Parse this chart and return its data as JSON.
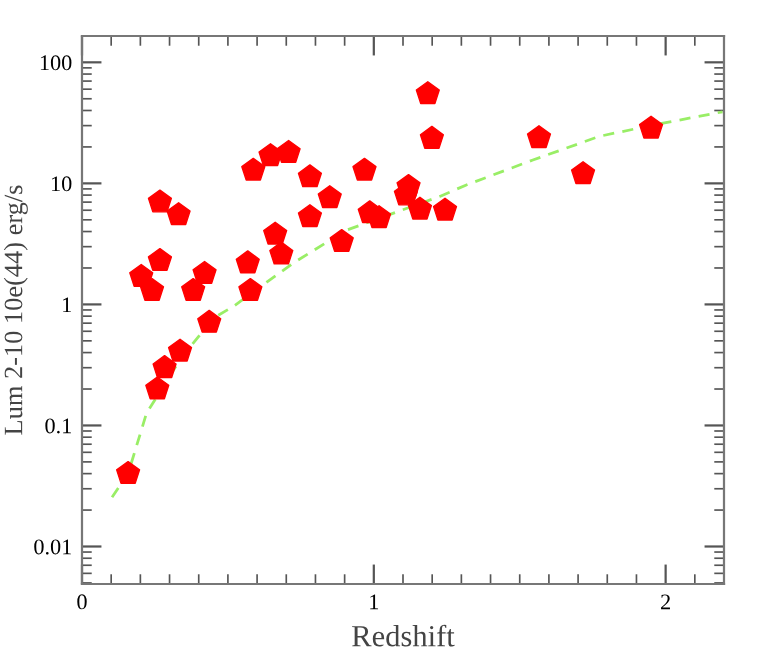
{
  "chart_data": {
    "type": "scatter",
    "xlabel": "Redshift",
    "ylabel": "Lum 2-10 10e(44) erg/s",
    "log": "y",
    "xlim": [
      0,
      2.2
    ],
    "ylim": [
      0.0049,
      165
    ],
    "xticks": [
      0,
      1,
      2
    ],
    "yticks": [
      0.01,
      0.1,
      1,
      10,
      100
    ],
    "grid": false,
    "legend": false,
    "series": [
      {
        "color": "#ff0000",
        "x": [
          0.267,
          0.331,
          0.203,
          0.24,
          0.267,
          0.381,
          0.42,
          0.568,
          0.577,
          0.587,
          0.646,
          0.708,
          0.662,
          0.683,
          0.781,
          0.849,
          0.781,
          0.89,
          0.968,
          0.986,
          1.018,
          1.119,
          1.11,
          1.158,
          1.185,
          1.199,
          1.244,
          1.566,
          1.717,
          1.95,
          0.158,
          0.258,
          0.283,
          0.336,
          0.436
        ],
        "values": [
          7.0,
          5.5,
          1.7,
          1.3,
          2.3,
          1.3,
          1.8,
          2.2,
          1.3,
          12.8,
          16.9,
          18,
          3.8,
          2.6,
          11.3,
          7.6,
          5.3,
          3.3,
          12.8,
          5.7,
          5.2,
          9.4,
          8.0,
          6.1,
          55,
          23.5,
          6.0,
          23.8,
          12,
          28.5,
          0.04,
          0.2,
          0.3,
          0.41,
          0.71
        ]
      },
      {
        "type": "line",
        "color": "#99ee66",
        "line_style": "dashed",
        "marker": "none",
        "x": [
          0.103,
          0.158,
          0.221,
          0.336,
          0.45,
          0.518,
          0.723,
          0.906,
          1.226,
          1.317,
          1.545,
          1.774,
          1.957,
          2.195
        ],
        "values": [
          0.0255,
          0.04,
          0.126,
          0.35,
          0.77,
          0.96,
          2.19,
          4.1,
          7.8,
          9.7,
          15.6,
          24.5,
          30.3,
          39
        ]
      }
    ]
  }
}
